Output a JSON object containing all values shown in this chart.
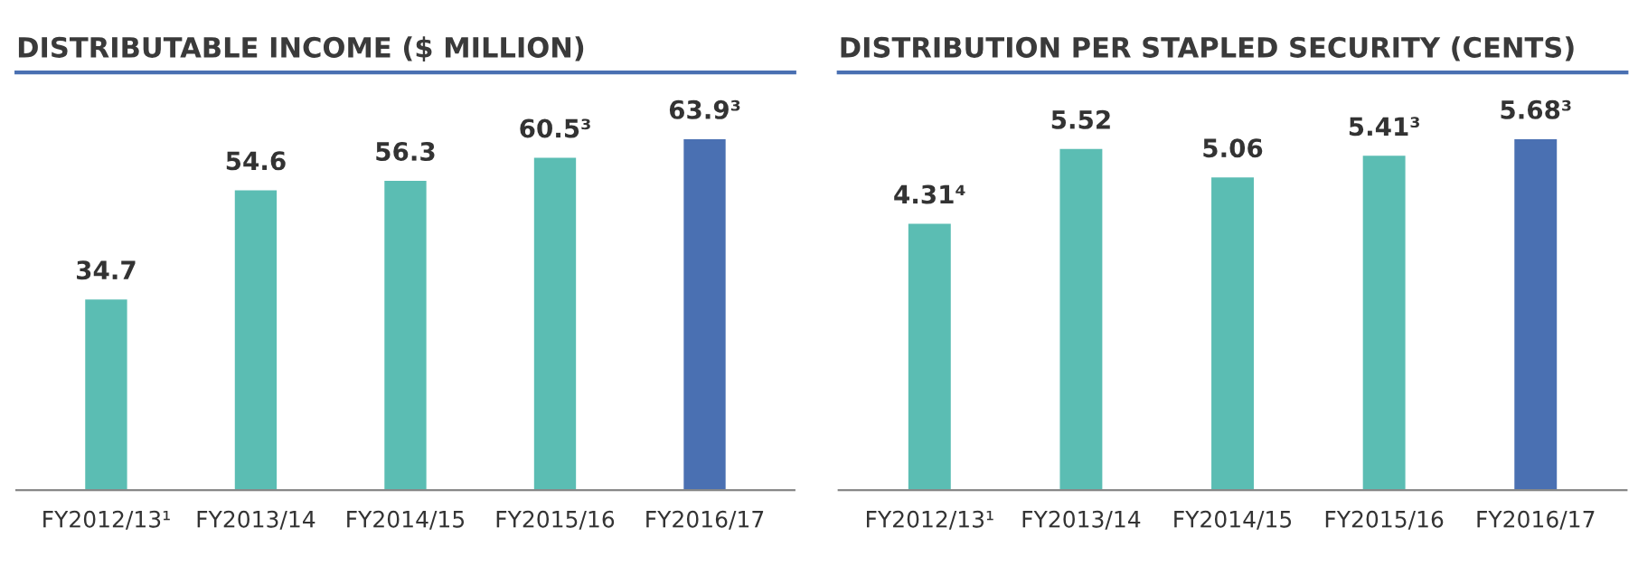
{
  "chart_data": [
    {
      "type": "bar",
      "title": "DISTRIBUTABLE INCOME ($ MILLION)",
      "categories": [
        "FY2012/13¹",
        "FY2013/14",
        "FY2014/15",
        "FY2015/16",
        "FY2016/17"
      ],
      "values": [
        34.7,
        54.6,
        56.3,
        60.5,
        63.9
      ],
      "value_labels": [
        "34.7",
        "54.6",
        "56.3",
        "60.5³",
        "63.9³"
      ],
      "colors": [
        "#5bbdb3",
        "#5bbdb3",
        "#5bbdb3",
        "#5bbdb3",
        "#4a70b2"
      ],
      "grid": false,
      "legend": false
    },
    {
      "type": "bar",
      "title": "DISTRIBUTION PER STAPLED SECURITY (CENTS)",
      "categories": [
        "FY2012/13¹",
        "FY2013/14",
        "FY2014/15",
        "FY2015/16",
        "FY2016/17"
      ],
      "values": [
        4.31,
        5.52,
        5.06,
        5.41,
        5.68
      ],
      "value_labels": [
        "4.31⁴",
        "5.52",
        "5.06",
        "5.41³",
        "5.68³"
      ],
      "colors": [
        "#5bbdb3",
        "#5bbdb3",
        "#5bbdb3",
        "#5bbdb3",
        "#4a70b2"
      ],
      "grid": false,
      "legend": false
    }
  ]
}
